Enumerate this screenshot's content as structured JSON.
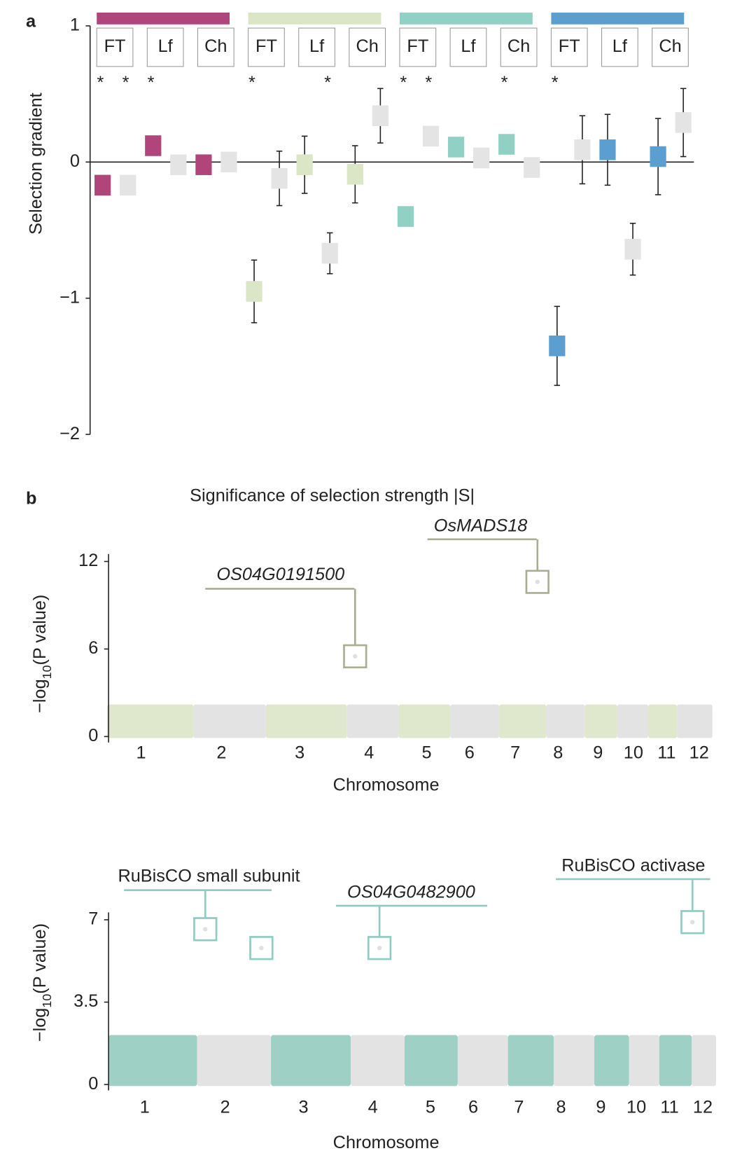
{
  "chart_data": [
    {
      "type": "errorbar",
      "panel": "a",
      "ylabel": "Selection gradient",
      "ylim": [
        -2,
        1
      ],
      "yticks": [
        {
          "value": -2,
          "label": "−2"
        },
        {
          "value": -1,
          "label": "−1"
        },
        0,
        1
      ],
      "neutral_color": "#e4e4e4",
      "groups": [
        {
          "color": "#b0457b",
          "traits": [
            "FT",
            "Lf",
            "Ch"
          ]
        },
        {
          "color": "#dae6c6",
          "traits": [
            "FT",
            "Lf",
            "Ch"
          ]
        },
        {
          "color": "#90d0c5",
          "traits": [
            "FT",
            "Lf",
            "Ch"
          ]
        },
        {
          "color": "#5b9fd1",
          "traits": [
            "FT",
            "Lf",
            "Ch"
          ]
        }
      ],
      "values": [
        -0.17,
        -0.17,
        0.12,
        -0.02,
        -0.02,
        0.0,
        -0.95,
        -0.12,
        -0.02,
        -0.67,
        -0.09,
        0.34,
        -0.4,
        0.19,
        0.11,
        0.03,
        0.13,
        -0.04,
        -1.35,
        0.09,
        0.09,
        -0.64,
        0.04,
        0.29
      ],
      "errors": [
        null,
        null,
        null,
        null,
        null,
        null,
        0.23,
        0.2,
        0.21,
        0.15,
        0.21,
        0.2,
        null,
        null,
        null,
        null,
        null,
        null,
        0.29,
        0.25,
        0.26,
        0.19,
        0.28,
        0.25
      ],
      "significance": [
        "*",
        "*",
        "*",
        null,
        null,
        null,
        "*",
        null,
        null,
        "*",
        null,
        null,
        "*",
        "*",
        null,
        null,
        "*",
        null,
        "*",
        null,
        null,
        null,
        null,
        null
      ]
    },
    {
      "type": "manhattan",
      "panel": "b",
      "title": "Significance of selection strength |S|",
      "ylabel": [
        "−log",
        "10",
        "(P value)"
      ],
      "xlabel": "Chromosome",
      "categories": [
        "1",
        "2",
        "3",
        "4",
        "5",
        "6",
        "7",
        "8",
        "9",
        "10",
        "11",
        "12"
      ],
      "colors": [
        "#dfe8cd",
        "#e3e3e3"
      ],
      "highlight_color": "#a9ae93",
      "ylim": [
        0,
        12
      ],
      "yticks": [
        0,
        6,
        12
      ],
      "highlights": [
        {
          "label": "OS04G0191500",
          "italic": true,
          "points": [
            {
              "chromosome": 4,
              "value": 5.5
            }
          ]
        },
        {
          "label": "OsMADS18",
          "italic": true,
          "points": [
            {
              "chromosome": 7,
              "value": 10.6
            }
          ]
        }
      ]
    },
    {
      "type": "manhattan",
      "ylabel": [
        "−log",
        "10",
        "(P value)"
      ],
      "xlabel": "Chromosome",
      "categories": [
        "1",
        "2",
        "3",
        "4",
        "5",
        "6",
        "7",
        "8",
        "9",
        "10",
        "11",
        "12"
      ],
      "colors": [
        "#9fd0c6",
        "#e3e3e3"
      ],
      "highlight_color": "#8ecbc0",
      "ylim": [
        0,
        7
      ],
      "yticks": [
        0,
        3.5,
        7
      ],
      "highlights": [
        {
          "label": "RuBisCO small subunit",
          "italic": false,
          "points": [
            {
              "chromosome": 2,
              "value": 6.6
            },
            {
              "chromosome": 2,
              "value": 5.8
            }
          ]
        },
        {
          "label": "OS04G0482900",
          "italic": true,
          "points": [
            {
              "chromosome": 4,
              "value": 5.8
            }
          ]
        },
        {
          "label": "RuBisCO activase",
          "italic": false,
          "points": [
            {
              "chromosome": 12,
              "value": 6.9
            }
          ]
        }
      ]
    }
  ]
}
